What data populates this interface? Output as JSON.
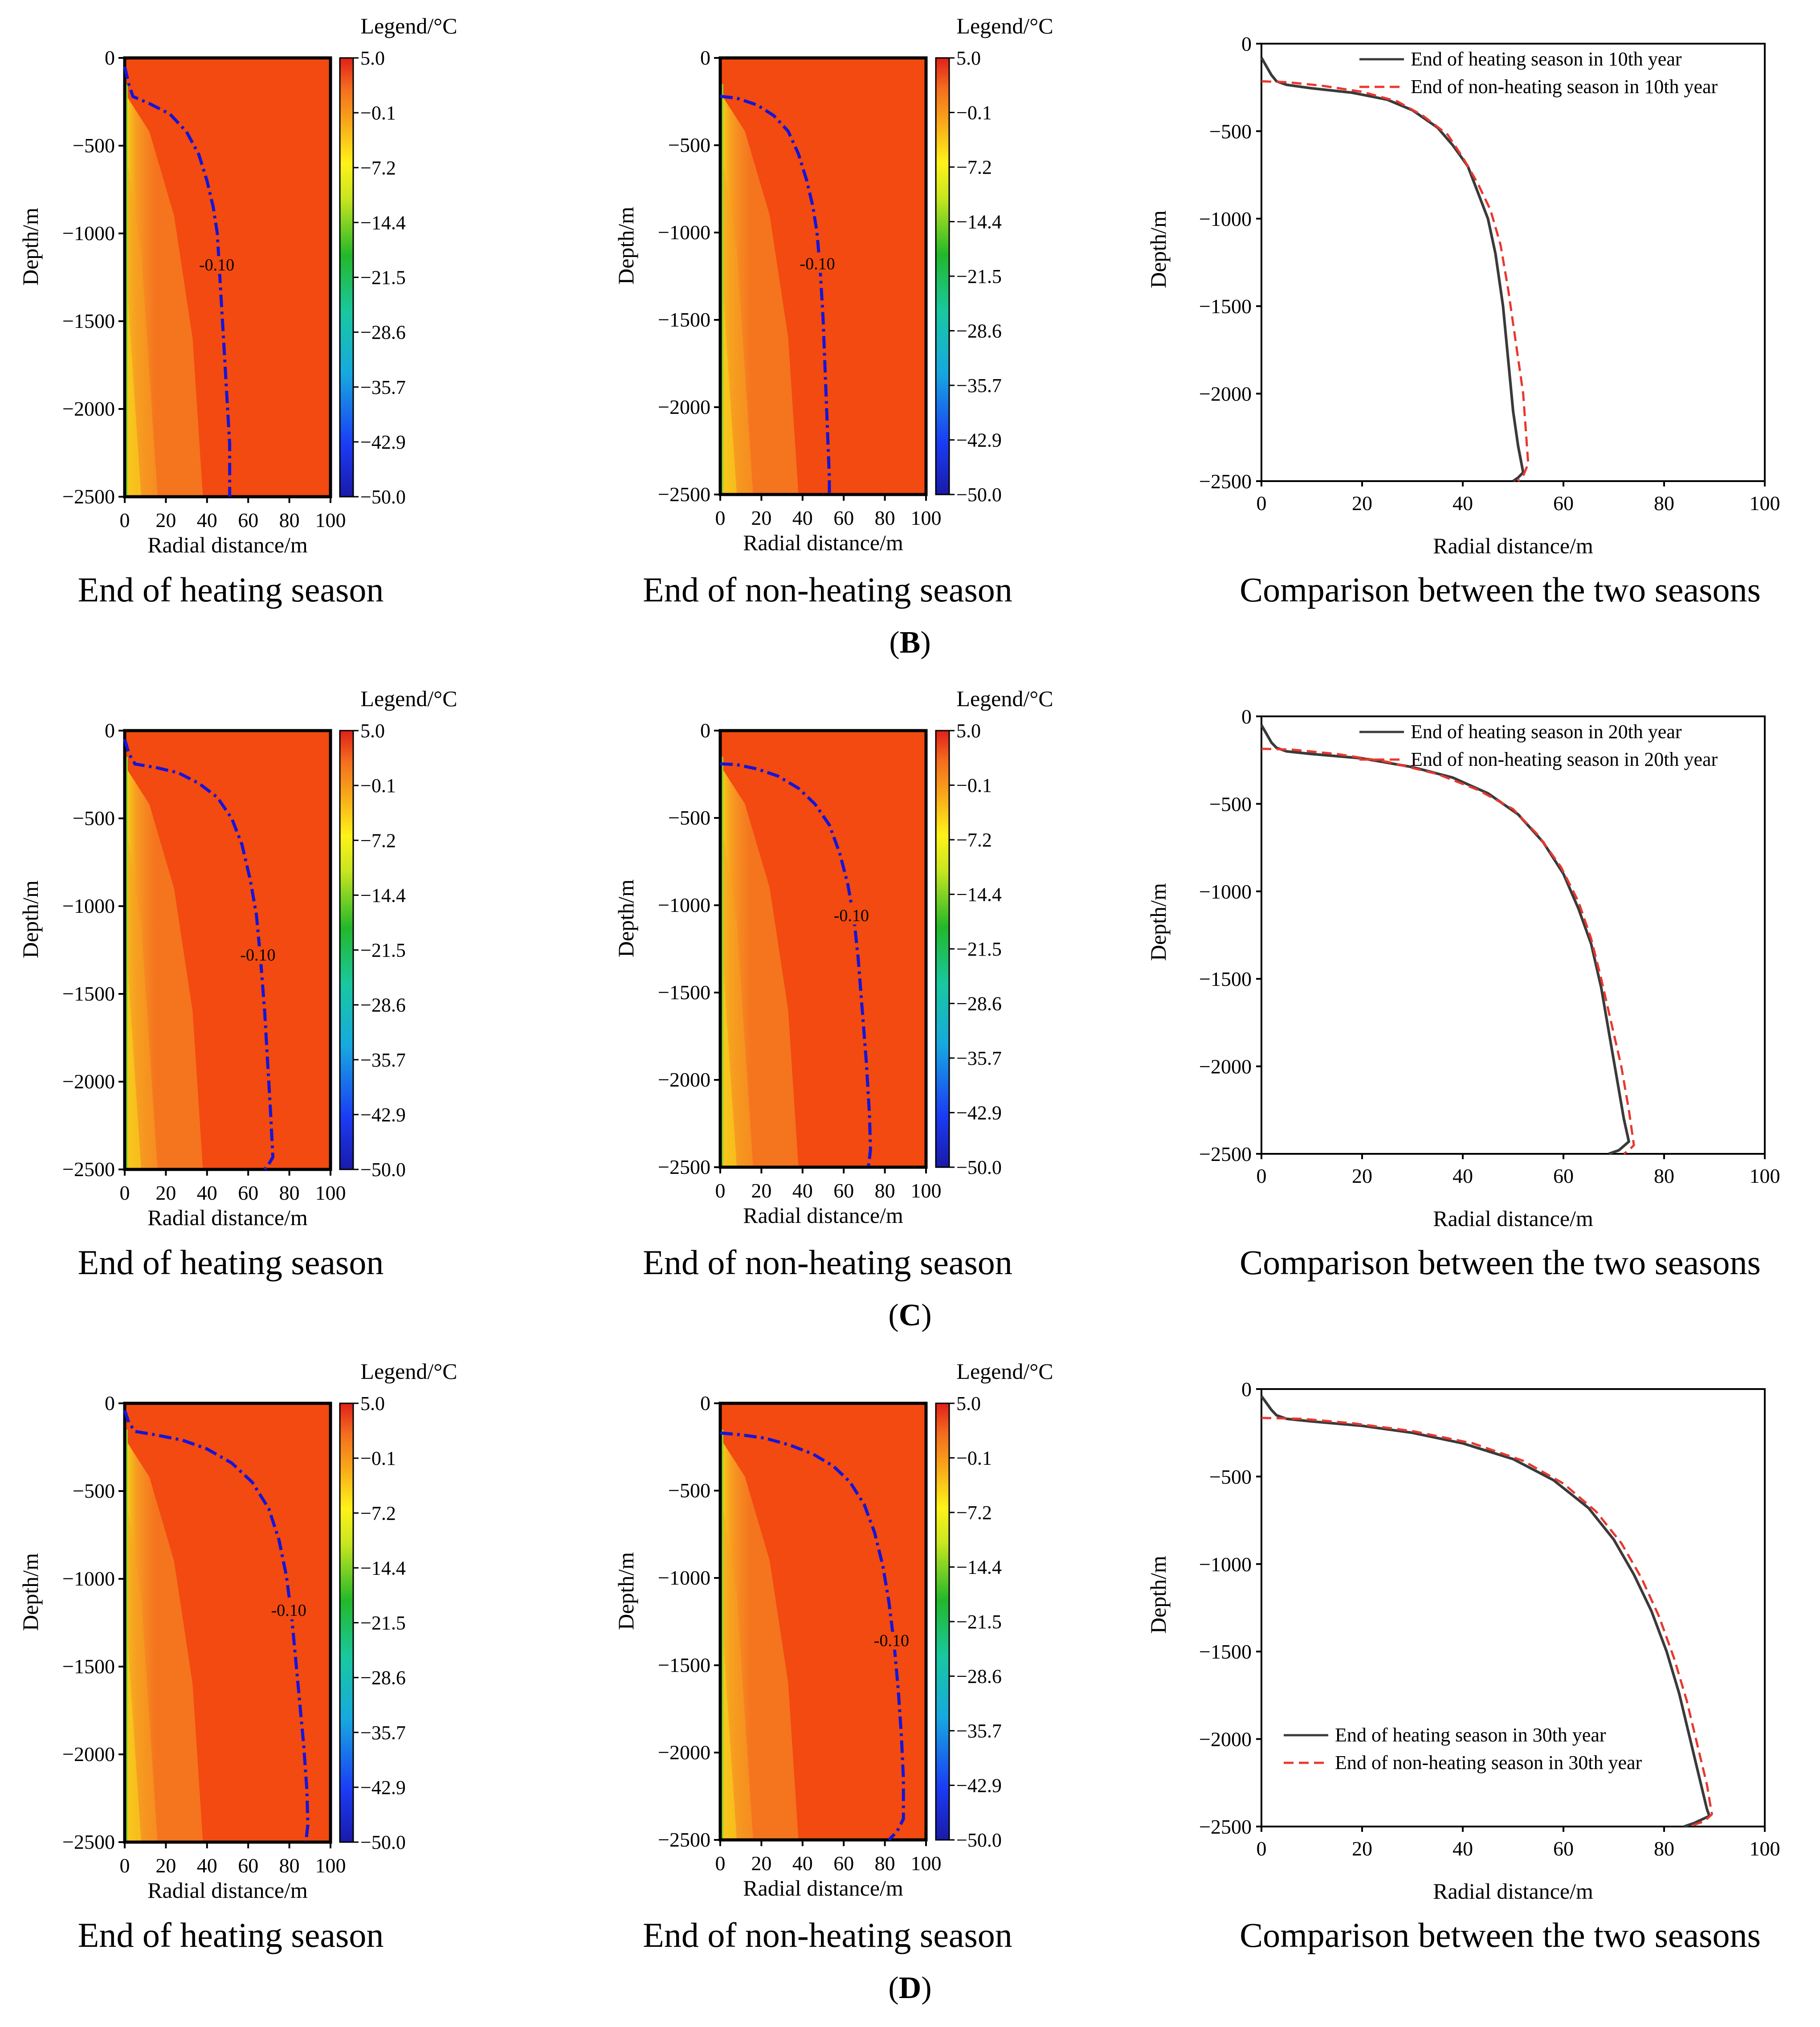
{
  "figure": {
    "rows": [
      {
        "panel_label": "B",
        "captions": {
          "heating": "End of heating season",
          "nonheating": "End of non-heating season",
          "comparison": "Comparison between the two seasons"
        },
        "comparison_legend": [
          "End of heating season in 10th year",
          "End of non-heating season in 10th year"
        ]
      },
      {
        "panel_label": "C",
        "captions": {
          "heating": "End of heating season",
          "nonheating": "End of non-heating season",
          "comparison": "Comparison between the two seasons"
        },
        "comparison_legend": [
          "End of heating season in 20th year",
          "End of non-heating season in 20th year"
        ]
      },
      {
        "panel_label": "D",
        "captions": {
          "heating": "End of heating season",
          "nonheating": "End of non-heating season",
          "comparison": "Comparison between the two seasons"
        },
        "comparison_legend": [
          "End of heating season in 30th year",
          "End of non-heating season in 30th year"
        ]
      }
    ]
  },
  "chart_data": [
    {
      "type": "heatmap",
      "row": "B",
      "season": "heating",
      "xlabel": "Radial distance/m",
      "ylabel": "Depth/m",
      "xticks": [
        "0",
        "20",
        "40",
        "60",
        "80",
        "100"
      ],
      "yticks": [
        "0",
        "−500",
        "−1000",
        "−1500",
        "−2000",
        "−2500"
      ],
      "xlim": [
        0,
        100
      ],
      "ylim": [
        -2500,
        0
      ],
      "colorbar_title": "Legend/°C",
      "colorbar_ticks": [
        "5.0",
        "−0.1",
        "−7.2",
        "−14.4",
        "−21.5",
        "−28.6",
        "−35.7",
        "−42.9",
        "−50.0"
      ],
      "contour_label": "-0.10",
      "contour_x": [
        0,
        2,
        4,
        12,
        22,
        30,
        36,
        40,
        43,
        45,
        46,
        47,
        48,
        49,
        50,
        51,
        51
      ],
      "contour_y": [
        -50,
        -150,
        -220,
        -260,
        -320,
        -420,
        -550,
        -700,
        -850,
        -1000,
        -1200,
        -1400,
        -1600,
        -1800,
        -2000,
        -2200,
        -2500
      ]
    },
    {
      "type": "heatmap",
      "row": "B",
      "season": "non-heating",
      "xlabel": "Radial distance/m",
      "ylabel": "Depth/m",
      "xticks": [
        "0",
        "20",
        "40",
        "60",
        "80",
        "100"
      ],
      "yticks": [
        "0",
        "−500",
        "−1000",
        "−1500",
        "−2000",
        "−2500"
      ],
      "xlim": [
        0,
        100
      ],
      "ylim": [
        -2500,
        0
      ],
      "colorbar_title": "Legend/°C",
      "colorbar_ticks": [
        "5.0",
        "−0.1",
        "−7.2",
        "−14.4",
        "−21.5",
        "−28.6",
        "−35.7",
        "−42.9",
        "−50.0"
      ],
      "contour_label": "-0.10",
      "contour_x": [
        0,
        8,
        18,
        26,
        33,
        38,
        42,
        45,
        47,
        48.5,
        50,
        51,
        52,
        53,
        53
      ],
      "contour_y": [
        -220,
        -230,
        -270,
        -330,
        -420,
        -550,
        -700,
        -850,
        -1000,
        -1200,
        -1500,
        -1800,
        -2100,
        -2400,
        -2500
      ]
    },
    {
      "type": "line",
      "row": "B",
      "xlabel": "Radial distance/m",
      "ylabel": "Depth/m",
      "xticks": [
        "0",
        "20",
        "40",
        "60",
        "80",
        "100"
      ],
      "yticks": [
        "0",
        "−500",
        "−1000",
        "−1500",
        "−2000",
        "−2500"
      ],
      "xlim": [
        0,
        100
      ],
      "ylim": [
        -2500,
        0
      ],
      "legend_position": "top-right",
      "series": [
        {
          "name": "End of heating season in 10th year",
          "style": "solid",
          "color": "#3a3a3a",
          "x": [
            0,
            1,
            2,
            3,
            5,
            10,
            18,
            25,
            30,
            35,
            38,
            41,
            43,
            45,
            46.5,
            48,
            49,
            50,
            51,
            52,
            51,
            50
          ],
          "y": [
            -80,
            -130,
            -180,
            -215,
            -235,
            -255,
            -280,
            -320,
            -380,
            -480,
            -580,
            -700,
            -850,
            -1000,
            -1200,
            -1500,
            -1800,
            -2100,
            -2300,
            -2450,
            -2480,
            -2500
          ]
        },
        {
          "name": "End of non-heating season in 10th year",
          "style": "dashed",
          "color": "#e8382f",
          "x": [
            0,
            5,
            12,
            20,
            27,
            32,
            37,
            40,
            43,
            45.5,
            47.5,
            49,
            50.5,
            52,
            53,
            52,
            51
          ],
          "y": [
            -215,
            -220,
            -240,
            -275,
            -330,
            -410,
            -520,
            -650,
            -800,
            -950,
            -1150,
            -1400,
            -1700,
            -2000,
            -2400,
            -2470,
            -2500
          ]
        }
      ]
    },
    {
      "type": "heatmap",
      "row": "C",
      "season": "heating",
      "xlabel": "Radial distance/m",
      "ylabel": "Depth/m",
      "xticks": [
        "0",
        "20",
        "40",
        "60",
        "80",
        "100"
      ],
      "yticks": [
        "0",
        "−500",
        "−1000",
        "−1500",
        "−2000",
        "−2500"
      ],
      "xlim": [
        0,
        100
      ],
      "ylim": [
        -2500,
        0
      ],
      "colorbar_title": "Legend/°C",
      "colorbar_ticks": [
        "5.0",
        "−0.1",
        "−7.2",
        "−14.4",
        "−21.5",
        "−28.6",
        "−35.7",
        "−42.9",
        "−50.0"
      ],
      "contour_label": "-0.10",
      "contour_x": [
        0,
        2,
        5,
        15,
        26,
        36,
        45,
        52,
        57,
        61,
        64,
        66,
        68,
        69.5,
        71,
        72,
        70,
        68
      ],
      "contour_y": [
        -50,
        -130,
        -190,
        -210,
        -240,
        -300,
        -380,
        -500,
        -650,
        -850,
        -1050,
        -1300,
        -1600,
        -1900,
        -2200,
        -2430,
        -2470,
        -2500
      ]
    },
    {
      "type": "heatmap",
      "row": "C",
      "season": "non-heating",
      "xlabel": "Radial distance/m",
      "ylabel": "Depth/m",
      "xticks": [
        "0",
        "20",
        "40",
        "60",
        "80",
        "100"
      ],
      "yticks": [
        "0",
        "−500",
        "−1000",
        "−1500",
        "−2000",
        "−2500"
      ],
      "xlim": [
        0,
        100
      ],
      "ylim": [
        -2500,
        0
      ],
      "colorbar_title": "Legend/°C",
      "colorbar_ticks": [
        "5.0",
        "−0.1",
        "−7.2",
        "−14.4",
        "−21.5",
        "−28.6",
        "−35.7",
        "−42.9",
        "−50.0"
      ],
      "contour_label": "-0.10",
      "contour_x": [
        0,
        8,
        18,
        28,
        38,
        46,
        53,
        58,
        62,
        65,
        67,
        69,
        71,
        72.5,
        73,
        72
      ],
      "contour_y": [
        -190,
        -195,
        -220,
        -260,
        -330,
        -420,
        -540,
        -700,
        -880,
        -1080,
        -1300,
        -1600,
        -1900,
        -2200,
        -2400,
        -2500
      ]
    },
    {
      "type": "line",
      "row": "C",
      "xlabel": "Radial distance/m",
      "ylabel": "Depth/m",
      "xticks": [
        "0",
        "20",
        "40",
        "60",
        "80",
        "100"
      ],
      "yticks": [
        "0",
        "−500",
        "−1000",
        "−1500",
        "−2000",
        "−2500"
      ],
      "xlim": [
        0,
        100
      ],
      "ylim": [
        -2500,
        0
      ],
      "legend_position": "top-right",
      "series": [
        {
          "name": "End of heating season in 20th year",
          "style": "solid",
          "color": "#3a3a3a",
          "x": [
            0,
            1,
            2,
            3,
            5,
            10,
            20,
            30,
            38,
            45,
            51,
            56,
            60,
            63,
            65.5,
            67.5,
            69,
            70.5,
            72,
            73,
            71,
            69
          ],
          "y": [
            -50,
            -100,
            -150,
            -180,
            -200,
            -215,
            -240,
            -290,
            -350,
            -440,
            -560,
            -720,
            -900,
            -1100,
            -1300,
            -1550,
            -1800,
            -2050,
            -2300,
            -2430,
            -2480,
            -2500
          ]
        },
        {
          "name": "End of non-heating season in 20th year",
          "style": "dashed",
          "color": "#e8382f",
          "x": [
            0,
            6,
            15,
            25,
            35,
            43,
            50,
            55,
            59.5,
            63,
            65.5,
            67.5,
            69.5,
            71.5,
            73,
            74,
            73,
            72
          ],
          "y": [
            -185,
            -190,
            -215,
            -260,
            -330,
            -420,
            -530,
            -680,
            -860,
            -1060,
            -1270,
            -1500,
            -1750,
            -2000,
            -2250,
            -2450,
            -2480,
            -2500
          ]
        }
      ]
    },
    {
      "type": "heatmap",
      "row": "D",
      "season": "heating",
      "xlabel": "Radial distance/m",
      "ylabel": "Depth/m",
      "xticks": [
        "0",
        "20",
        "40",
        "60",
        "80",
        "100"
      ],
      "yticks": [
        "0",
        "−500",
        "−1000",
        "−1500",
        "−2000",
        "−2500"
      ],
      "xlim": [
        0,
        100
      ],
      "ylim": [
        -2500,
        0
      ],
      "colorbar_title": "Legend/°C",
      "colorbar_ticks": [
        "5.0",
        "−0.1",
        "−7.2",
        "−14.4",
        "−21.5",
        "−28.6",
        "−35.7",
        "−42.9",
        "−50.0"
      ],
      "contour_label": "-0.10",
      "contour_x": [
        0,
        2,
        5,
        15,
        28,
        40,
        52,
        62,
        70,
        75,
        78.5,
        81,
        83,
        85,
        87,
        88.5,
        89,
        88
      ],
      "contour_y": [
        -40,
        -110,
        -160,
        -180,
        -210,
        -260,
        -340,
        -450,
        -600,
        -780,
        -980,
        -1200,
        -1450,
        -1700,
        -1950,
        -2200,
        -2400,
        -2500
      ]
    },
    {
      "type": "heatmap",
      "row": "D",
      "season": "non-heating",
      "xlabel": "Radial distance/m",
      "ylabel": "Depth/m",
      "xticks": [
        "0",
        "20",
        "40",
        "60",
        "80",
        "100"
      ],
      "yticks": [
        "0",
        "−500",
        "−1000",
        "−1500",
        "−2000",
        "−2500"
      ],
      "xlim": [
        0,
        100
      ],
      "ylim": [
        -2500,
        0
      ],
      "colorbar_title": "Legend/°C",
      "colorbar_ticks": [
        "5.0",
        "−0.1",
        "−7.2",
        "−14.4",
        "−21.5",
        "−28.6",
        "−35.7",
        "−42.9",
        "−50.0"
      ],
      "contour_label": "-0.10",
      "contour_x": [
        0,
        10,
        22,
        34,
        45,
        55,
        63,
        70,
        75,
        79,
        82,
        84.5,
        86.5,
        88,
        89,
        89,
        86,
        82
      ],
      "contour_y": [
        -170,
        -180,
        -200,
        -240,
        -290,
        -360,
        -450,
        -580,
        -740,
        -930,
        -1140,
        -1380,
        -1640,
        -1900,
        -2150,
        -2380,
        -2450,
        -2500
      ]
    },
    {
      "type": "line",
      "row": "D",
      "xlabel": "Radial distance/m",
      "ylabel": "Depth/m",
      "xticks": [
        "0",
        "20",
        "40",
        "60",
        "80",
        "100"
      ],
      "yticks": [
        "0",
        "−500",
        "−1000",
        "−1500",
        "−2000",
        "−2500"
      ],
      "xlim": [
        0,
        100
      ],
      "ylim": [
        -2500,
        0
      ],
      "legend_position": "bottom-left",
      "series": [
        {
          "name": "End of heating season in 30th year",
          "style": "solid",
          "color": "#3a3a3a",
          "x": [
            0,
            1,
            2,
            3,
            5,
            10,
            20,
            30,
            40,
            50,
            58,
            65,
            70,
            74,
            77.5,
            80.5,
            83,
            85,
            87,
            88.5,
            89,
            86,
            84
          ],
          "y": [
            -40,
            -80,
            -120,
            -150,
            -170,
            -185,
            -210,
            -250,
            -310,
            -400,
            -520,
            -680,
            -860,
            -1060,
            -1270,
            -1500,
            -1740,
            -1980,
            -2220,
            -2400,
            -2440,
            -2480,
            -2500
          ]
        },
        {
          "name": "End of non-heating season in 30th year",
          "style": "dashed",
          "color": "#e8382f",
          "x": [
            0,
            8,
            18,
            30,
            42,
            52,
            60,
            66.5,
            71.5,
            75.5,
            79,
            82,
            84.5,
            86.5,
            88.5,
            89.5,
            88,
            85
          ],
          "y": [
            -165,
            -170,
            -195,
            -240,
            -310,
            -410,
            -540,
            -700,
            -880,
            -1080,
            -1300,
            -1540,
            -1780,
            -2020,
            -2260,
            -2430,
            -2470,
            -2500
          ]
        }
      ]
    }
  ]
}
